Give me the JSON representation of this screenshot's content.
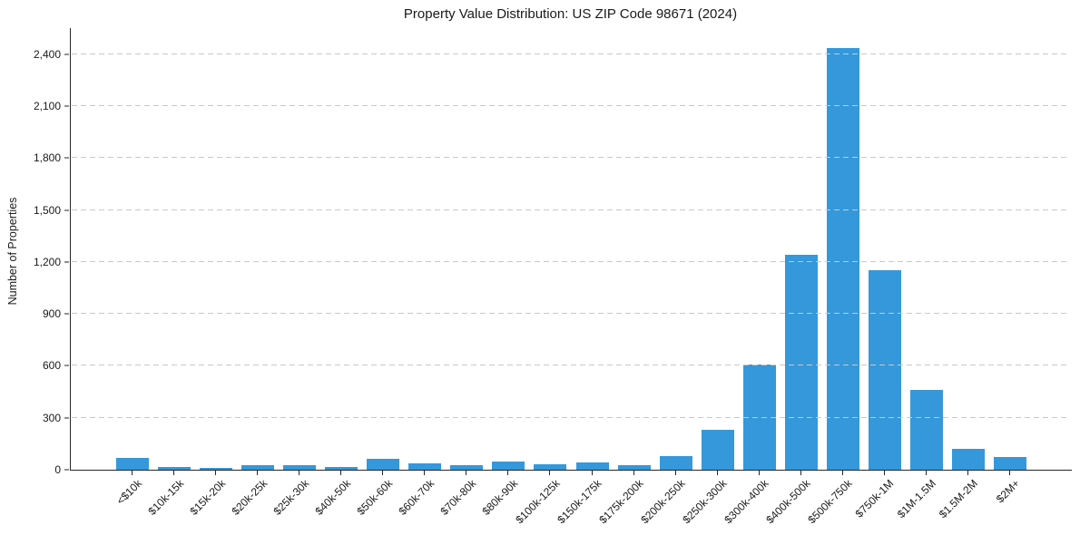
{
  "chart_data": {
    "type": "bar",
    "title": "Property Value Distribution: US ZIP Code 98671 (2024)",
    "xlabel": "",
    "ylabel": "Number of Properties",
    "categories": [
      "<$10k",
      "$10k-15k",
      "$15k-20k",
      "$20k-25k",
      "$25k-30k",
      "$40k-50k",
      "$50k-60k",
      "$60k-70k",
      "$70k-80k",
      "$80k-90k",
      "$100k-125k",
      "$150k-175k",
      "$175k-200k",
      "$200k-250k",
      "$250k-300k",
      "$300k-400k",
      "$400k-500k",
      "$500k-750k",
      "$750k-1M",
      "$1M-1.5M",
      "$1.5M-2M",
      "$2M+"
    ],
    "values": [
      70,
      16,
      13,
      28,
      24,
      14,
      63,
      38,
      28,
      48,
      33,
      43,
      24,
      80,
      232,
      609,
      1241,
      2434,
      1152,
      461,
      120,
      73
    ],
    "yticks": [
      0,
      300,
      600,
      900,
      1200,
      1500,
      1800,
      2100,
      2400
    ],
    "ytick_labels": [
      "0",
      "300",
      "600",
      "900",
      "1,200",
      "1,500",
      "1,800",
      "2,100",
      "2,400"
    ],
    "ylim": [
      0,
      2550
    ],
    "grid": true,
    "grid_style": "dashed",
    "legend": false,
    "colors": {
      "bar": "#3498db",
      "grid": "#c9c9c9",
      "axis": "#262626",
      "text": "#1a1a1a",
      "background": "#ffffff"
    }
  }
}
